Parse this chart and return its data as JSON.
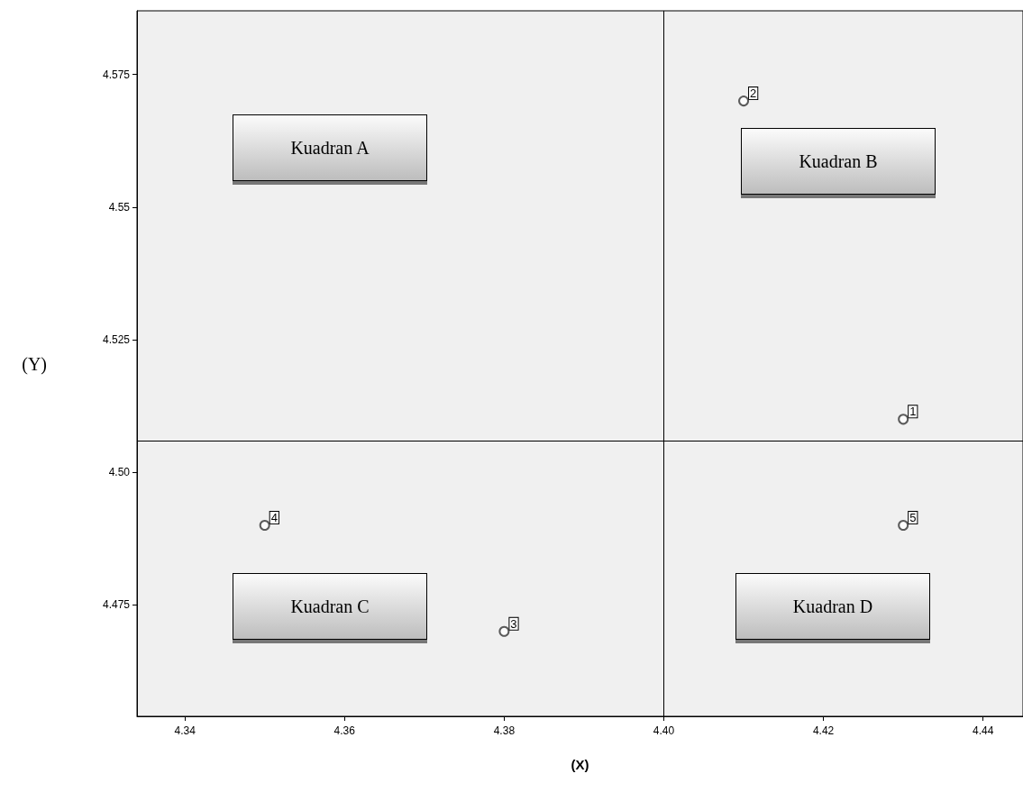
{
  "chart_data": {
    "type": "scatter",
    "xlabel": "(X)",
    "ylabel": "(Y)",
    "x": [
      4.43,
      4.41,
      4.38,
      4.35,
      4.43
    ],
    "values": [
      4.51,
      4.57,
      4.47,
      4.49,
      4.49
    ],
    "color": "#333333",
    "marker": "circle",
    "xlim": [
      4.334,
      4.445
    ],
    "ylim": [
      4.454,
      4.587
    ],
    "xticks": [
      4.34,
      4.36,
      4.38,
      {
        "value": 4.4,
        "label": "4.40"
      },
      4.42,
      4.44
    ],
    "yticks": [
      4.475,
      {
        "value": 4.5,
        "label": "4.50"
      },
      4.525,
      4.55,
      4.575
    ],
    "ref_lines": [
      {
        "axis": "x",
        "value": 4.4
      },
      {
        "axis": "y",
        "value": 4.506
      }
    ],
    "annotations": [
      "Kuadran A",
      "Kuadran B",
      "Kuadran C",
      "Kuadran D",
      {
        "text": "1",
        "x": 4.43,
        "y": 4.51
      },
      {
        "text": "2",
        "x": 4.41,
        "y": 4.57
      },
      {
        "text": "3",
        "x": 4.38,
        "y": 4.47
      },
      {
        "text": "4",
        "x": 4.35,
        "y": 4.49
      },
      {
        "text": "5",
        "x": 4.43,
        "y": 4.49
      }
    ],
    "grid": false
  }
}
